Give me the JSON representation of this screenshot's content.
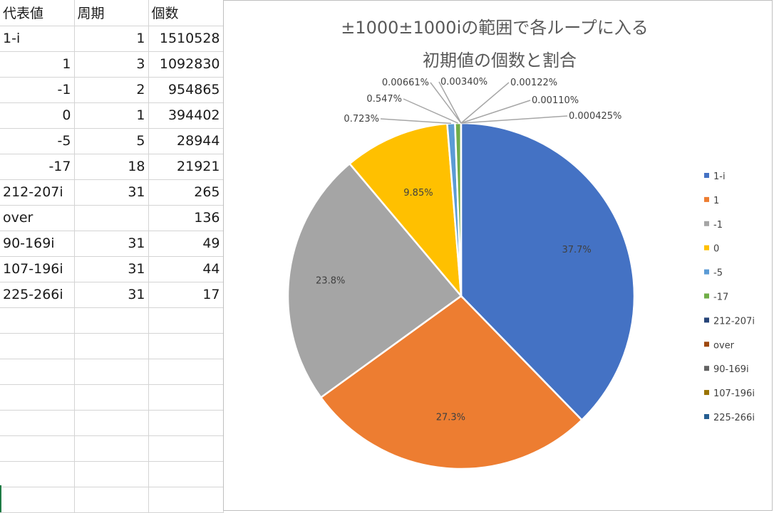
{
  "table": {
    "headers": [
      "代表値",
      "周期",
      "個数"
    ],
    "rows": [
      [
        "1-i",
        "1",
        "1510528"
      ],
      [
        "1",
        "3",
        "1092830"
      ],
      [
        "-1",
        "2",
        "954865"
      ],
      [
        "0",
        "1",
        "394402"
      ],
      [
        "-5",
        "5",
        "28944"
      ],
      [
        "-17",
        "18",
        "21921"
      ],
      [
        "212-207i",
        "31",
        "265"
      ],
      [
        "over",
        "",
        "136"
      ],
      [
        "90-169i",
        "31",
        "49"
      ],
      [
        "107-196i",
        "31",
        "44"
      ],
      [
        "225-266i",
        "31",
        "17"
      ]
    ]
  },
  "chart_data": {
    "type": "pie",
    "title": "±1000±1000iの範囲で各ループに入る初期値の個数と割合",
    "title_lines": [
      "±1000±1000iの範囲で各ループに入る",
      "初期値の個数と割合"
    ],
    "categories": [
      "1-i",
      "1",
      "-1",
      "0",
      "-5",
      "-17",
      "212-207i",
      "over",
      "90-169i",
      "107-196i",
      "225-266i"
    ],
    "values": [
      1510528,
      1092830,
      954865,
      394402,
      28944,
      21921,
      265,
      136,
      49,
      44,
      17
    ],
    "data_labels": [
      "37.7%",
      "27.3%",
      "23.8%",
      "9.85%",
      "0.723%",
      "0.547%",
      "0.00661%",
      "0.00340%",
      "0.00122%",
      "0.00110%",
      "0.000425%"
    ],
    "colors": [
      "#4472c4",
      "#ed7d31",
      "#a5a5a5",
      "#ffc000",
      "#5b9bd5",
      "#70ad47",
      "#264478",
      "#9e480e",
      "#636363",
      "#997300",
      "#255e91"
    ],
    "legend_position": "right",
    "start_angle_deg": 0,
    "direction": "clockwise"
  }
}
